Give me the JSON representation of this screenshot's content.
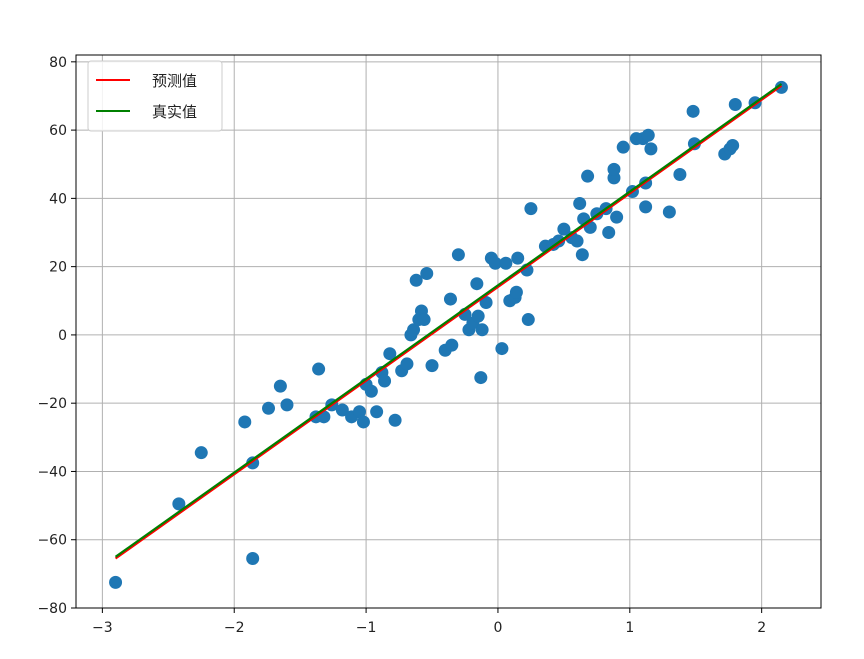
{
  "chart_data": {
    "type": "scatter",
    "xlim": [
      -3.2,
      2.45
    ],
    "ylim": [
      -80,
      82
    ],
    "xticks": [
      -3,
      -2,
      -1,
      0,
      1,
      2
    ],
    "yticks": [
      -80,
      -60,
      -40,
      -20,
      0,
      20,
      40,
      60,
      80
    ],
    "grid": true,
    "legend_position": "top-left",
    "legend": [
      {
        "label": "预测值",
        "color": "#ff0000"
      },
      {
        "label": "真实值",
        "color": "#008000"
      }
    ],
    "scatter_color": "#1f77b4",
    "points": [
      [
        -2.9,
        -72.5
      ],
      [
        -2.42,
        -49.5
      ],
      [
        -2.25,
        -34.5
      ],
      [
        -1.92,
        -25.5
      ],
      [
        -1.86,
        -37.5
      ],
      [
        -1.86,
        -65.5
      ],
      [
        -1.74,
        -21.5
      ],
      [
        -1.65,
        -15
      ],
      [
        -1.6,
        -20.5
      ],
      [
        -1.38,
        -24
      ],
      [
        -1.36,
        -10
      ],
      [
        -1.32,
        -24
      ],
      [
        -1.26,
        -20.5
      ],
      [
        -1.18,
        -22
      ],
      [
        -1.11,
        -24
      ],
      [
        -1.05,
        -22.5
      ],
      [
        -1.02,
        -25.5
      ],
      [
        -1.0,
        -14.5
      ],
      [
        -0.96,
        -16.5
      ],
      [
        -0.92,
        -22.5
      ],
      [
        -0.88,
        -11
      ],
      [
        -0.86,
        -13.5
      ],
      [
        -0.82,
        -5.5
      ],
      [
        -0.78,
        -25
      ],
      [
        -0.73,
        -10.5
      ],
      [
        -0.69,
        -8.5
      ],
      [
        -0.66,
        0
      ],
      [
        -0.64,
        1.5
      ],
      [
        -0.62,
        16
      ],
      [
        -0.6,
        4.5
      ],
      [
        -0.58,
        7
      ],
      [
        -0.56,
        4.5
      ],
      [
        -0.54,
        18
      ],
      [
        -0.5,
        -9
      ],
      [
        -0.4,
        -4.5
      ],
      [
        -0.36,
        10.5
      ],
      [
        -0.35,
        -3
      ],
      [
        -0.3,
        23.5
      ],
      [
        -0.25,
        6
      ],
      [
        -0.22,
        1.5
      ],
      [
        -0.19,
        3.5
      ],
      [
        -0.16,
        15
      ],
      [
        -0.15,
        5.5
      ],
      [
        -0.13,
        -12.5
      ],
      [
        -0.12,
        1.5
      ],
      [
        -0.09,
        9.5
      ],
      [
        -0.05,
        22.5
      ],
      [
        -0.02,
        21
      ],
      [
        0.03,
        -4
      ],
      [
        0.06,
        21
      ],
      [
        0.09,
        10
      ],
      [
        0.13,
        11
      ],
      [
        0.14,
        12.5
      ],
      [
        0.15,
        22.5
      ],
      [
        0.22,
        19
      ],
      [
        0.23,
        4.5
      ],
      [
        0.25,
        37
      ],
      [
        0.36,
        26
      ],
      [
        0.42,
        26.5
      ],
      [
        0.46,
        27.5
      ],
      [
        0.5,
        31
      ],
      [
        0.56,
        28.5
      ],
      [
        0.6,
        27.5
      ],
      [
        0.62,
        38.5
      ],
      [
        0.64,
        23.5
      ],
      [
        0.65,
        34
      ],
      [
        0.68,
        46.5
      ],
      [
        0.7,
        31.5
      ],
      [
        0.75,
        35.5
      ],
      [
        0.82,
        37
      ],
      [
        0.84,
        30
      ],
      [
        0.88,
        46
      ],
      [
        0.88,
        48.5
      ],
      [
        0.9,
        34.5
      ],
      [
        0.95,
        55
      ],
      [
        1.02,
        42
      ],
      [
        1.05,
        57.5
      ],
      [
        1.1,
        57.5
      ],
      [
        1.12,
        44.5
      ],
      [
        1.12,
        37.5
      ],
      [
        1.14,
        58.5
      ],
      [
        1.16,
        54.5
      ],
      [
        1.3,
        36
      ],
      [
        1.38,
        47
      ],
      [
        1.48,
        65.5
      ],
      [
        1.49,
        56
      ],
      [
        1.72,
        53
      ],
      [
        1.76,
        54.5
      ],
      [
        1.78,
        55.5
      ],
      [
        1.8,
        67.5
      ],
      [
        1.95,
        68
      ],
      [
        2.15,
        72.5
      ]
    ],
    "series": [
      {
        "values": [
          [
            -2.9,
            -65.5
          ],
          [
            2.15,
            73
          ]
        ],
        "color": "#ff0000"
      },
      {
        "values": [
          [
            -2.9,
            -65
          ],
          [
            2.15,
            73.5
          ]
        ],
        "color": "#008000"
      }
    ]
  }
}
